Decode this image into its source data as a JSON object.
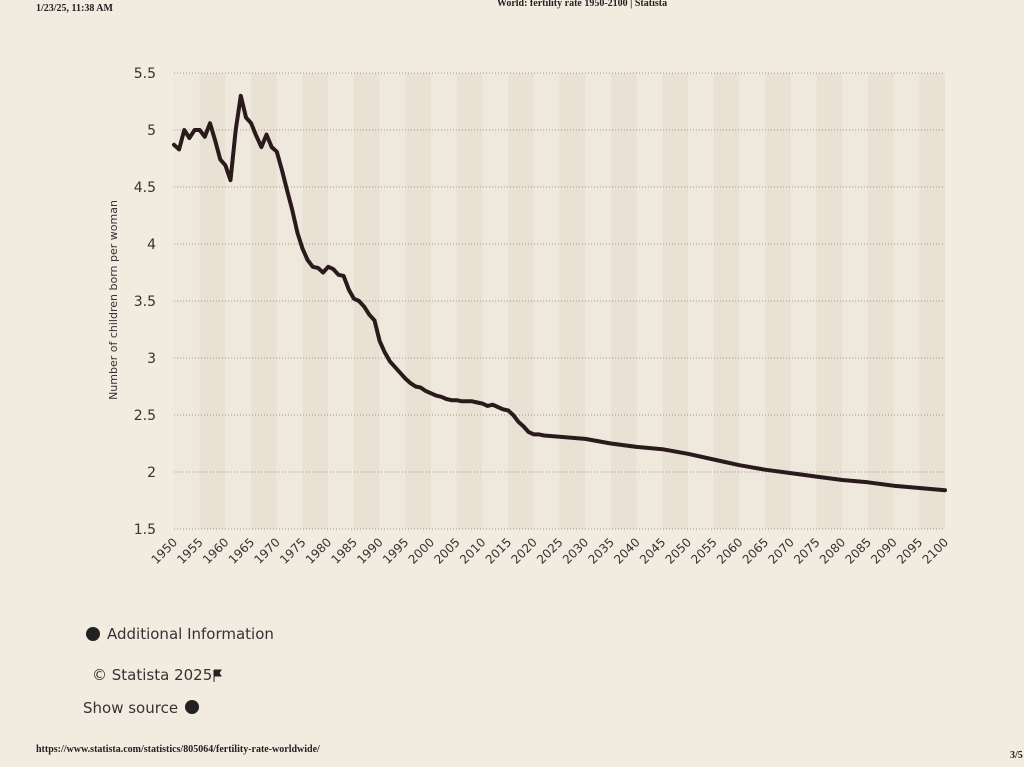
{
  "page_header": {
    "timestamp": "1/23/25, 11:38 AM",
    "title": "World: fertility rate 1950-2100 | Statista"
  },
  "chart_data": {
    "type": "line",
    "ylabel": "Number of children born per woman",
    "color": "#2a1a1c",
    "grid": true,
    "x": [
      1950,
      1951,
      1952,
      1953,
      1954,
      1955,
      1956,
      1957,
      1958,
      1959,
      1960,
      1961,
      1962,
      1963,
      1964,
      1965,
      1966,
      1967,
      1968,
      1969,
      1970,
      1971,
      1972,
      1973,
      1974,
      1975,
      1976,
      1977,
      1978,
      1979,
      1980,
      1981,
      1982,
      1983,
      1984,
      1985,
      1986,
      1987,
      1988,
      1989,
      1990,
      1991,
      1992,
      1993,
      1994,
      1995,
      1996,
      1997,
      1998,
      1999,
      2000,
      2001,
      2002,
      2003,
      2004,
      2005,
      2006,
      2007,
      2008,
      2009,
      2010,
      2011,
      2012,
      2013,
      2014,
      2015,
      2016,
      2017,
      2018,
      2019,
      2020,
      2021,
      2022,
      2025,
      2030,
      2035,
      2040,
      2045,
      2050,
      2055,
      2060,
      2065,
      2070,
      2075,
      2080,
      2085,
      2090,
      2095,
      2100
    ],
    "values": [
      4.87,
      4.83,
      5.0,
      4.93,
      5.0,
      5.0,
      4.94,
      5.06,
      4.91,
      4.74,
      4.69,
      4.56,
      5.0,
      5.3,
      5.11,
      5.06,
      4.95,
      4.85,
      4.96,
      4.85,
      4.81,
      4.65,
      4.47,
      4.3,
      4.1,
      3.96,
      3.86,
      3.8,
      3.79,
      3.75,
      3.8,
      3.78,
      3.73,
      3.72,
      3.6,
      3.52,
      3.5,
      3.45,
      3.38,
      3.33,
      3.15,
      3.05,
      2.97,
      2.92,
      2.87,
      2.82,
      2.78,
      2.75,
      2.74,
      2.71,
      2.69,
      2.67,
      2.66,
      2.64,
      2.63,
      2.63,
      2.62,
      2.62,
      2.62,
      2.61,
      2.6,
      2.58,
      2.59,
      2.57,
      2.55,
      2.54,
      2.5,
      2.44,
      2.4,
      2.35,
      2.33,
      2.33,
      2.32,
      2.31,
      2.29,
      2.25,
      2.22,
      2.2,
      2.16,
      2.11,
      2.06,
      2.02,
      1.99,
      1.96,
      1.93,
      1.91,
      1.88,
      1.86,
      1.84
    ],
    "xlim": [
      1950,
      2100
    ],
    "xticks": [
      1950,
      1955,
      1960,
      1965,
      1970,
      1975,
      1980,
      1985,
      1990,
      1995,
      2000,
      2005,
      2010,
      2015,
      2020,
      2025,
      2030,
      2035,
      2040,
      2045,
      2050,
      2055,
      2060,
      2065,
      2070,
      2075,
      2080,
      2085,
      2090,
      2095,
      2100
    ],
    "ylim": [
      1.5,
      5.5
    ],
    "yticks": [
      1.5,
      2,
      2.5,
      3,
      3.5,
      4,
      4.5,
      5,
      5.5
    ]
  },
  "links": {
    "additional_info": "Additional Information",
    "copyright": "© Statista 2025",
    "show_source": "Show source"
  },
  "page_footer": {
    "url": "https://www.statista.com/statistics/805064/fertility-rate-worldwide/",
    "page": "3/5"
  }
}
